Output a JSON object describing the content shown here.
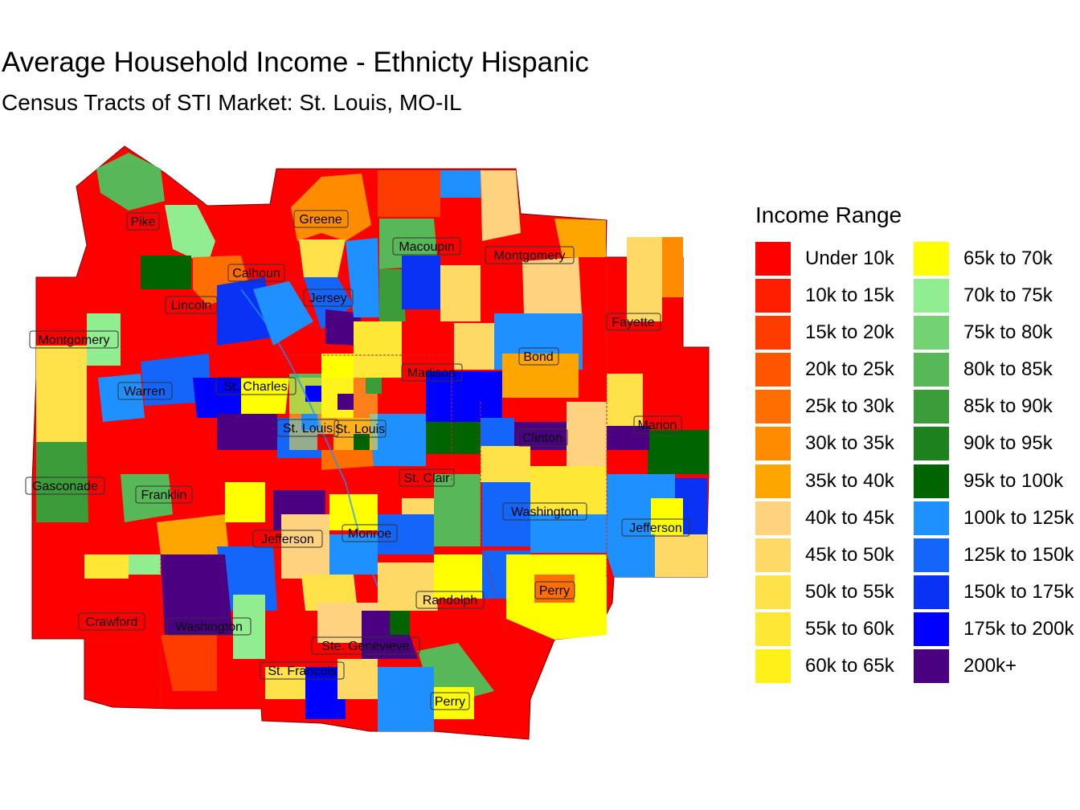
{
  "title": "Average Household Income - Ethnicty Hispanic",
  "subtitle": "Census Tracts of STI Market: St. Louis, MO-IL",
  "legend": {
    "title": "Income Range",
    "items": [
      {
        "label": "Under 10k",
        "color": "#FF0000"
      },
      {
        "label": "10k to 15k",
        "color": "#FF1E00"
      },
      {
        "label": "15k to 20k",
        "color": "#FF3C00"
      },
      {
        "label": "20k to 25k",
        "color": "#FF5500"
      },
      {
        "label": "25k to 30k",
        "color": "#FF6E00"
      },
      {
        "label": "30k to 35k",
        "color": "#FF8C00"
      },
      {
        "label": "35k to 40k",
        "color": "#FFA500"
      },
      {
        "label": "40k to 45k",
        "color": "#FFD27F"
      },
      {
        "label": "45k to 50k",
        "color": "#FFD966"
      },
      {
        "label": "50k to 55k",
        "color": "#FFE14A"
      },
      {
        "label": "55k to 60k",
        "color": "#FFE835"
      },
      {
        "label": "60k to 65k",
        "color": "#FFF01A"
      },
      {
        "label": "65k to 70k",
        "color": "#FFFF00"
      },
      {
        "label": "70k to 75k",
        "color": "#90EE90"
      },
      {
        "label": "75k to 80k",
        "color": "#73D373"
      },
      {
        "label": "80k to 85k",
        "color": "#57B857"
      },
      {
        "label": "85k to 90k",
        "color": "#3A9D3A"
      },
      {
        "label": "90k to 95k",
        "color": "#1D821D"
      },
      {
        "label": "95k to 100k",
        "color": "#006400"
      },
      {
        "label": "100k to 125k",
        "color": "#1E90FF"
      },
      {
        "label": "125k to 150k",
        "color": "#1465FA"
      },
      {
        "label": "150k to 175k",
        "color": "#0A32F5"
      },
      {
        "label": "175k to 200k",
        "color": "#0000FF"
      },
      {
        "label": "200k+",
        "color": "#4B0082"
      }
    ]
  },
  "counties": [
    "Pike",
    "Greene",
    "Macoupin",
    "Montgomery",
    "Calhoun",
    "Jersey",
    "Lincoln",
    "Fayette",
    "Montgomery",
    "Bond",
    "Madison",
    "Warren",
    "St. Charles",
    "Marion",
    "St. Louis",
    "St. Louis",
    "Clinton",
    "Gasconade",
    "Franklin",
    "St. Clair",
    "Washington",
    "Jefferson",
    "Jefferson",
    "Monroe",
    "Perry",
    "Randolph",
    "Crawford",
    "Washington",
    "Ste. Genevieve",
    "St. Francois",
    "Perry"
  ]
}
